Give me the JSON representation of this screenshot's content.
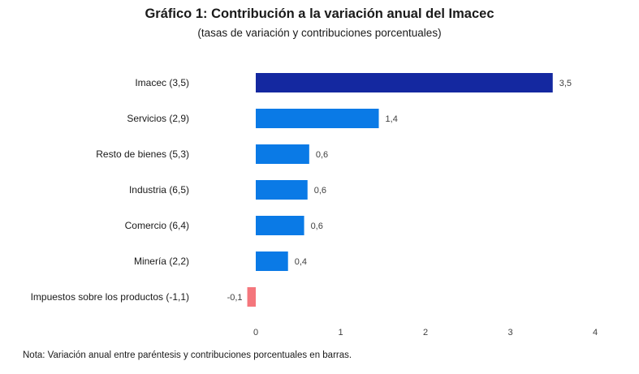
{
  "chart_data": {
    "type": "bar",
    "orientation": "horizontal",
    "title": "Gráfico 1: Contribución a la variación anual del Imacec",
    "subtitle": "(tasas de variación y contribuciones porcentuales)",
    "categories": [
      "Imacec (3,5)",
      "Servicios (2,9)",
      "Resto de bienes (5,3)",
      "Industria (6,5)",
      "Comercio (6,4)",
      "Minería (2,2)",
      "Impuestos sobre los productos (-1,1)"
    ],
    "values": [
      3.5,
      1.45,
      0.63,
      0.61,
      0.57,
      0.38,
      -0.1
    ],
    "data_labels": [
      "3,5",
      "1,4",
      "0,6",
      "0,6",
      "0,6",
      "0,4",
      "-0,1"
    ],
    "bar_colors": [
      "#1428a0",
      "#0a7ae6",
      "#0a7ae6",
      "#0a7ae6",
      "#0a7ae6",
      "#0a7ae6",
      "#f4767c"
    ],
    "xlim": [
      -0.1,
      4
    ],
    "xticks": [
      0,
      1,
      2,
      3,
      4
    ],
    "xtick_labels": [
      "0",
      "1",
      "2",
      "3",
      "4"
    ],
    "xlabel": "",
    "ylabel": "",
    "grid": false,
    "legend": "none"
  },
  "note": "Nota: Variación anual entre paréntesis y contribuciones porcentuales en barras."
}
